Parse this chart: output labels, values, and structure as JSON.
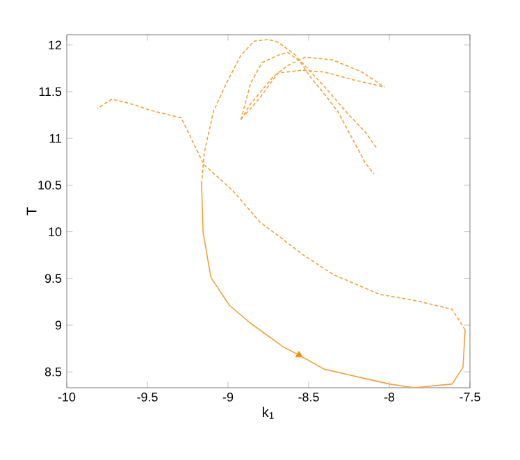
{
  "chart_data": {
    "type": "line",
    "xlabel": "k$_{1}$",
    "ylabel": "T",
    "xlim": [
      -10,
      -7.5
    ],
    "ylim": [
      8.33,
      12.11
    ],
    "xticks": [
      -10,
      -9.5,
      -9,
      -8.5,
      -8,
      -7.5
    ],
    "yticks": [
      8.5,
      9,
      9.5,
      10,
      10.5,
      11,
      11.5,
      12
    ],
    "grid": false,
    "marker": "none",
    "series": [
      {
        "color": "#f7a033",
        "line_style": "solid",
        "x": [
          -9.164,
          -9.16,
          -9.155,
          -9.106,
          -8.99,
          -8.86,
          -8.66,
          -8.56,
          -8.405,
          -8.23,
          -8.0,
          -7.845,
          -7.61,
          -7.543,
          -7.53
        ],
        "values": [
          10.51,
          10.3,
          10.0,
          9.51,
          9.21,
          9.02,
          8.77,
          8.68,
          8.53,
          8.46,
          8.37,
          8.33,
          8.37,
          8.55,
          8.95
        ]
      },
      {
        "color": "#f7a033",
        "line_style": "dashed",
        "x": [
          -7.53,
          -7.61,
          -7.83,
          -8.06,
          -8.345,
          -8.54,
          -8.69,
          -8.8,
          -8.97,
          -9.15,
          -9.29,
          -9.48,
          -9.58,
          -9.72,
          -9.81
        ],
        "values": [
          8.95,
          9.17,
          9.26,
          9.33,
          9.54,
          9.76,
          9.96,
          10.1,
          10.44,
          10.72,
          11.22,
          11.3,
          11.36,
          11.42,
          11.32
        ]
      },
      {
        "color": "#f7a033",
        "line_style": "dashed",
        "x": [
          -9.164,
          -9.147,
          -9.09,
          -9.01,
          -8.92,
          -8.84,
          -8.75,
          -8.69,
          -8.58,
          -8.49,
          -8.4,
          -8.32,
          -8.23,
          -8.15,
          -8.095
        ],
        "values": [
          10.51,
          10.85,
          11.29,
          11.59,
          11.89,
          12.04,
          12.06,
          12.03,
          11.89,
          11.66,
          11.47,
          11.29,
          11.0,
          10.74,
          10.62
        ]
      },
      {
        "color": "#f7a033",
        "line_style": "dashed",
        "x": [
          -8.92,
          -8.86,
          -8.79,
          -8.69,
          -8.63,
          -8.54,
          -8.4,
          -8.25,
          -8.15,
          -8.08
        ],
        "values": [
          11.2,
          11.59,
          11.81,
          11.89,
          11.92,
          11.81,
          11.55,
          11.25,
          11.07,
          10.9
        ]
      },
      {
        "color": "#f7a033",
        "line_style": "dashed",
        "x": [
          -8.92,
          -8.86,
          -8.72,
          -8.63,
          -8.52,
          -8.35,
          -8.17,
          -8.03
        ],
        "values": [
          11.2,
          11.37,
          11.66,
          11.78,
          11.87,
          11.84,
          11.71,
          11.55
        ]
      },
      {
        "color": "#f7a033",
        "line_style": "dashed",
        "x": [
          -8.89,
          -8.8,
          -8.69,
          -8.54,
          -8.4,
          -8.23,
          -8.03
        ],
        "values": [
          11.26,
          11.44,
          11.7,
          11.73,
          11.71,
          11.63,
          11.55
        ]
      },
      {
        "type": "scatter",
        "color": "#ff8c00",
        "marker": "triangle",
        "x": [
          -8.56
        ],
        "values": [
          8.68
        ]
      }
    ]
  }
}
